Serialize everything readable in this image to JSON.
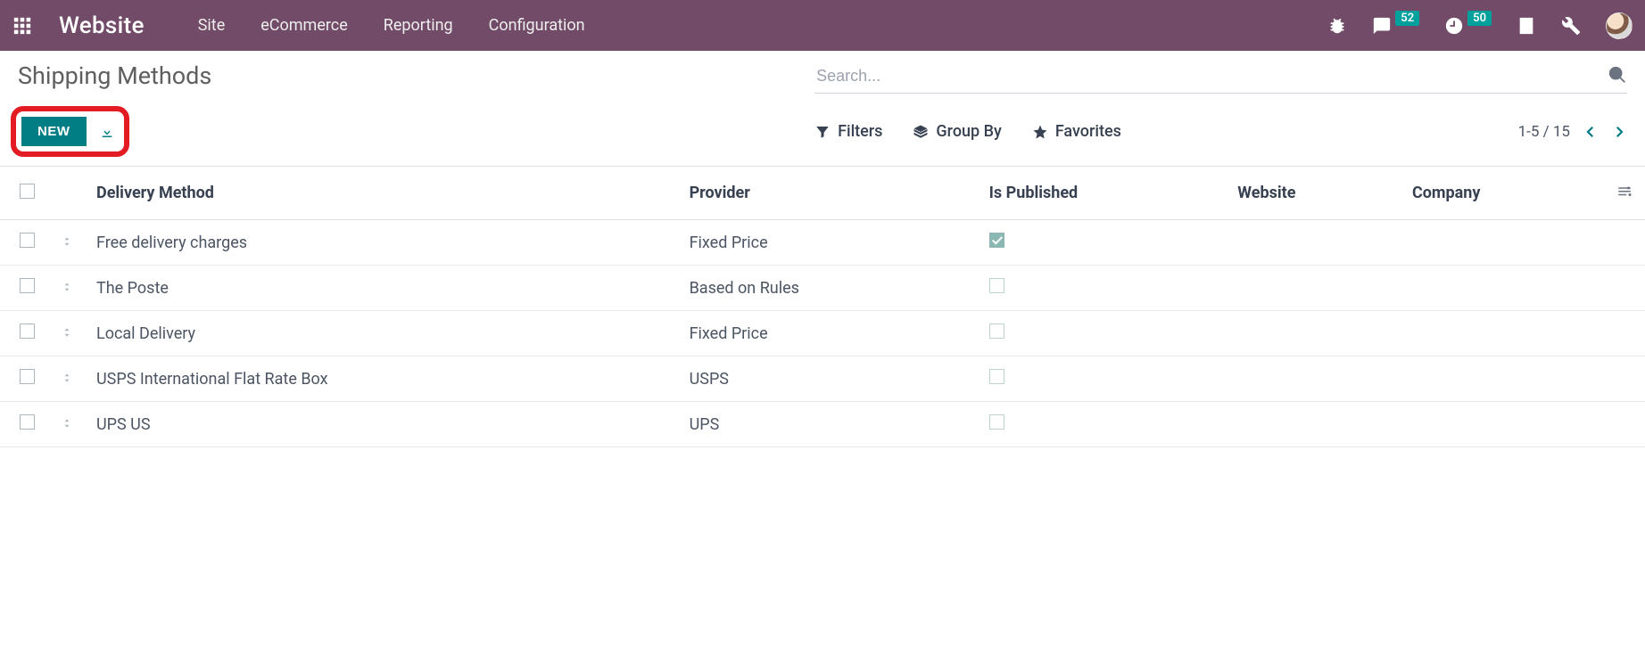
{
  "navbar": {
    "brand": "Website",
    "menu": [
      "Site",
      "eCommerce",
      "Reporting",
      "Configuration"
    ],
    "messages_badge": "52",
    "activities_badge": "50"
  },
  "control_panel": {
    "title": "Shipping Methods",
    "new_label": "NEW",
    "search_placeholder": "Search...",
    "filters_label": "Filters",
    "groupby_label": "Group By",
    "favorites_label": "Favorites",
    "pager": "1-5 / 15"
  },
  "table": {
    "columns": {
      "delivery_method": "Delivery Method",
      "provider": "Provider",
      "is_published": "Is Published",
      "website": "Website",
      "company": "Company"
    },
    "rows": [
      {
        "method": "Free delivery charges",
        "provider": "Fixed Price",
        "published": true,
        "website": "",
        "company": ""
      },
      {
        "method": "The Poste",
        "provider": "Based on Rules",
        "published": false,
        "website": "",
        "company": ""
      },
      {
        "method": "Local Delivery",
        "provider": "Fixed Price",
        "published": false,
        "website": "",
        "company": ""
      },
      {
        "method": "USPS International Flat Rate Box",
        "provider": "USPS",
        "published": false,
        "website": "",
        "company": ""
      },
      {
        "method": "UPS US",
        "provider": "UPS",
        "published": false,
        "website": "",
        "company": ""
      }
    ]
  },
  "colors": {
    "navbar_bg": "#714b67",
    "teal": "#017e84",
    "badge_teal": "#00a09d",
    "highlight_red": "#e31b23",
    "pub_check": "#8bb8b3"
  }
}
